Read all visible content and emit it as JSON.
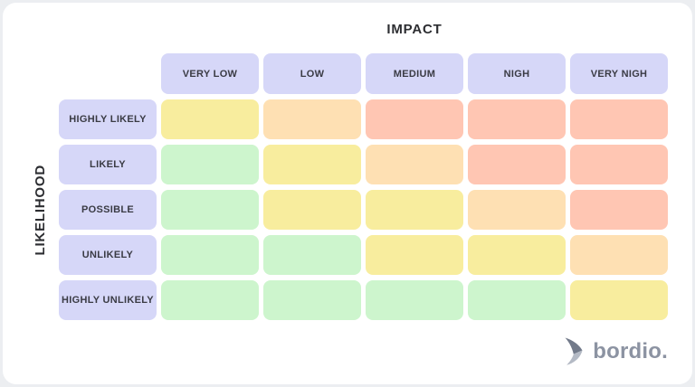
{
  "chart_data": {
    "type": "heatmap",
    "title": "",
    "x_axis": {
      "title": "IMPACT",
      "categories": [
        "VERY LOW",
        "LOW",
        "MEDIUM",
        "NIGH",
        "VERY NIGH"
      ]
    },
    "y_axis": {
      "title": "LIKELIHOOD",
      "categories": [
        "HIGHLY LIKELY",
        "LIKELY",
        "POSSIBLE",
        "UNLIKELY",
        "HIGHLY UNLIKELY"
      ]
    },
    "cells": [
      [
        "moderate",
        "high",
        "extreme",
        "extreme",
        "extreme"
      ],
      [
        "low",
        "moderate",
        "high",
        "extreme",
        "extreme"
      ],
      [
        "low",
        "moderate",
        "moderate",
        "high",
        "extreme"
      ],
      [
        "low",
        "low",
        "moderate",
        "moderate",
        "high"
      ],
      [
        "low",
        "low",
        "low",
        "low",
        "moderate"
      ]
    ],
    "legend_position": "none",
    "colors": {
      "low": "#cdf5cd",
      "moderate": "#f8ed9e",
      "high": "#fee0b3",
      "extreme": "#ffc6b3",
      "header": "#d6d7f8"
    }
  },
  "branding": {
    "logo_text": "bordio.",
    "logo_icon": "chevron-right-swoosh",
    "logo_text_color": "#8c93a2",
    "logo_icon_dark": "#727a8a",
    "logo_icon_light": "#b4bac5"
  },
  "theme": {
    "page_background": "#eceef1",
    "card_background": "#ffffff",
    "label_text_color": "#3a3b44",
    "axis_text_color": "#2c2d31"
  }
}
